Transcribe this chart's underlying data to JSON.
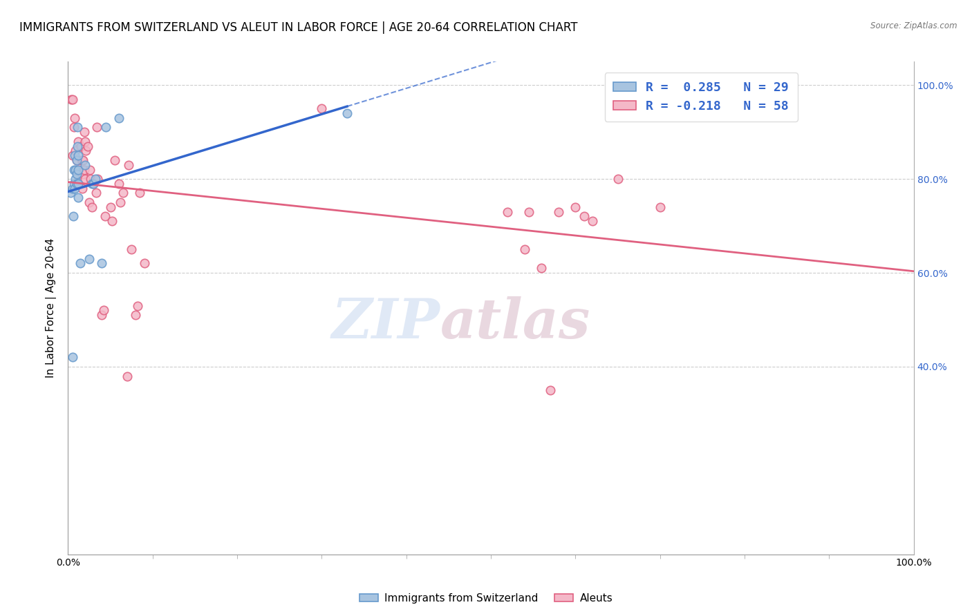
{
  "title": "IMMIGRANTS FROM SWITZERLAND VS ALEUT IN LABOR FORCE | AGE 20-64 CORRELATION CHART",
  "source": "Source: ZipAtlas.com",
  "ylabel": "In Labor Force | Age 20-64",
  "watermark_zip": "ZIP",
  "watermark_atlas": "atlas",
  "swiss_color": "#a8c4e0",
  "swiss_edge": "#6699cc",
  "aleut_color": "#f4b8c8",
  "aleut_edge": "#e06080",
  "line_blue": "#3366cc",
  "line_pink": "#e06080",
  "swiss_x": [
    0.003,
    0.005,
    0.006,
    0.007,
    0.007,
    0.008,
    0.008,
    0.009,
    0.009,
    0.01,
    0.01,
    0.01,
    0.011,
    0.011,
    0.012,
    0.012,
    0.012,
    0.012,
    0.014,
    0.02,
    0.025,
    0.028,
    0.03,
    0.032,
    0.04,
    0.045,
    0.06,
    0.33,
    0.005
  ],
  "swiss_y": [
    0.77,
    0.78,
    0.72,
    0.82,
    0.79,
    0.85,
    0.78,
    0.8,
    0.82,
    0.84,
    0.81,
    0.79,
    0.91,
    0.87,
    0.79,
    0.85,
    0.76,
    0.82,
    0.62,
    0.83,
    0.63,
    0.79,
    0.79,
    0.8,
    0.62,
    0.91,
    0.93,
    0.94,
    0.42
  ],
  "aleut_x": [
    0.004,
    0.005,
    0.005,
    0.007,
    0.008,
    0.009,
    0.01,
    0.011,
    0.012,
    0.013,
    0.015,
    0.016,
    0.017,
    0.017,
    0.018,
    0.018,
    0.019,
    0.019,
    0.02,
    0.02,
    0.021,
    0.023,
    0.025,
    0.026,
    0.027,
    0.028,
    0.03,
    0.033,
    0.034,
    0.035,
    0.04,
    0.042,
    0.044,
    0.05,
    0.052,
    0.055,
    0.06,
    0.062,
    0.065,
    0.07,
    0.072,
    0.075,
    0.08,
    0.082,
    0.085,
    0.09,
    0.3,
    0.52,
    0.54,
    0.545,
    0.56,
    0.57,
    0.58,
    0.6,
    0.61,
    0.62,
    0.65,
    0.7
  ],
  "aleut_y": [
    0.97,
    0.97,
    0.85,
    0.91,
    0.93,
    0.86,
    0.84,
    0.81,
    0.88,
    0.82,
    0.87,
    0.84,
    0.78,
    0.84,
    0.81,
    0.84,
    0.9,
    0.82,
    0.8,
    0.88,
    0.86,
    0.87,
    0.75,
    0.82,
    0.8,
    0.74,
    0.79,
    0.77,
    0.91,
    0.8,
    0.51,
    0.52,
    0.72,
    0.74,
    0.71,
    0.84,
    0.79,
    0.75,
    0.77,
    0.38,
    0.83,
    0.65,
    0.51,
    0.53,
    0.77,
    0.62,
    0.95,
    0.73,
    0.65,
    0.73,
    0.61,
    0.35,
    0.73,
    0.74,
    0.72,
    0.71,
    0.8,
    0.74
  ],
  "xlim": [
    0.0,
    1.0
  ],
  "ylim": [
    0.0,
    1.05
  ],
  "y_ticks": [
    0.4,
    0.6,
    0.8,
    1.0
  ],
  "y_tick_labels": [
    "40.0%",
    "60.0%",
    "80.0%",
    "100.0%"
  ],
  "x_ticks": [
    0.0,
    1.0
  ],
  "x_tick_labels": [
    "0.0%",
    "100.0%"
  ],
  "grid_color": "#cccccc",
  "background_color": "#ffffff",
  "title_fontsize": 12,
  "label_fontsize": 11,
  "tick_fontsize": 10,
  "marker_size": 80,
  "marker_linewidth": 1.2,
  "legend_text_1": "R =  0.285   N = 29",
  "legend_text_2": "R = -0.218   N = 58"
}
